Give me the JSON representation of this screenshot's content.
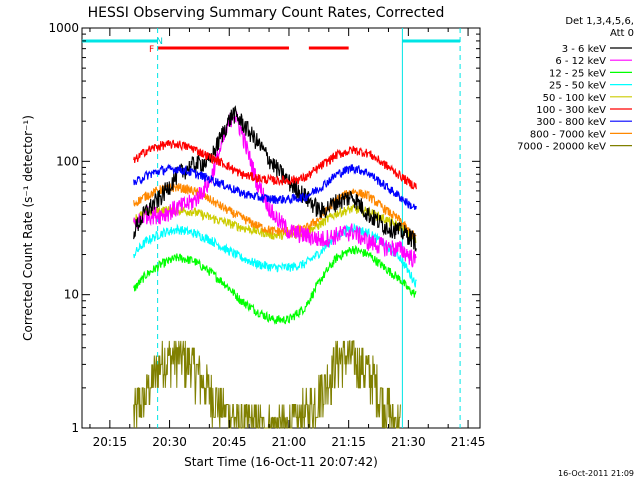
{
  "chart_data": {
    "type": "line",
    "title": "HESSI Observing Summary Count Rates, Corrected",
    "xlabel": "Start Time (16-Oct-11 20:07:42)",
    "ylabel": "Corrected Count Rate (s⁻¹ detector⁻¹)",
    "x_unit": "minutes of day (UT)",
    "xlim": [
      1208,
      1308
    ],
    "ylim": [
      1,
      1000
    ],
    "y_scale": "log",
    "grid": false,
    "x_ticks": [
      {
        "value": 1215,
        "label": "20:15"
      },
      {
        "value": 1230,
        "label": "20:30"
      },
      {
        "value": 1245,
        "label": "20:45"
      },
      {
        "value": 1260,
        "label": "21:00"
      },
      {
        "value": 1275,
        "label": "21:15"
      },
      {
        "value": 1290,
        "label": "21:30"
      },
      {
        "value": 1305,
        "label": "21:45"
      }
    ],
    "y_ticks": [
      {
        "value": 1,
        "label": "1"
      },
      {
        "value": 10,
        "label": "10"
      },
      {
        "value": 100,
        "label": "100"
      },
      {
        "value": 1000,
        "label": "1000"
      }
    ],
    "legend": {
      "position": "outside-right",
      "header": [
        "Det 1,3,4,5,6,",
        "Att 0"
      ]
    },
    "series": [
      {
        "name": "3 - 6 keV",
        "color": "#000000",
        "x": [
          1221,
          1224,
          1228,
          1232,
          1236,
          1240,
          1244,
          1246,
          1248,
          1252,
          1256,
          1260,
          1264,
          1268,
          1272,
          1276,
          1280,
          1284,
          1288,
          1290,
          1292
        ],
        "y": [
          30,
          42,
          55,
          80,
          95,
          100,
          180,
          230,
          200,
          140,
          95,
          70,
          55,
          42,
          50,
          55,
          40,
          33,
          30,
          28,
          25
        ]
      },
      {
        "name": "6 - 12 keV",
        "color": "#ff00ff",
        "x": [
          1221,
          1224,
          1228,
          1232,
          1236,
          1240,
          1244,
          1246,
          1248,
          1252,
          1256,
          1260,
          1264,
          1268,
          1272,
          1276,
          1280,
          1284,
          1288,
          1290,
          1292
        ],
        "y": [
          33,
          40,
          40,
          45,
          50,
          70,
          160,
          235,
          170,
          70,
          40,
          30,
          28,
          26,
          28,
          30,
          25,
          23,
          22,
          20,
          18
        ]
      },
      {
        "name": "12 - 25 keV",
        "color": "#00ff00",
        "x": [
          1221,
          1224,
          1228,
          1232,
          1236,
          1240,
          1244,
          1248,
          1252,
          1256,
          1260,
          1264,
          1268,
          1272,
          1276,
          1280,
          1284,
          1288,
          1290,
          1292
        ],
        "y": [
          11,
          14,
          17,
          19,
          18,
          15,
          12,
          9,
          7.5,
          6.5,
          6.5,
          8,
          13,
          19,
          22,
          20,
          16,
          13,
          11,
          10
        ]
      },
      {
        "name": "25 - 50 keV",
        "color": "#00ffff",
        "x": [
          1221,
          1224,
          1228,
          1232,
          1236,
          1240,
          1244,
          1248,
          1252,
          1256,
          1260,
          1264,
          1268,
          1272,
          1276,
          1280,
          1284,
          1288,
          1290,
          1292
        ],
        "y": [
          20,
          25,
          29,
          31,
          29,
          26,
          22,
          19,
          17,
          16,
          16,
          17,
          21,
          28,
          32,
          29,
          24,
          19,
          15,
          12
        ]
      },
      {
        "name": "50 - 100 keV",
        "color": "#cccc00",
        "x": [
          1221,
          1224,
          1228,
          1232,
          1236,
          1240,
          1244,
          1248,
          1252,
          1256,
          1260,
          1264,
          1268,
          1272,
          1276,
          1280,
          1284,
          1288,
          1290,
          1292
        ],
        "y": [
          37,
          41,
          43,
          43,
          42,
          38,
          35,
          32,
          30,
          28,
          28,
          29,
          34,
          41,
          44,
          42,
          37,
          32,
          28,
          25
        ]
      },
      {
        "name": "100 - 300 keV",
        "color": "#ff0000",
        "x": [
          1221,
          1224,
          1228,
          1232,
          1236,
          1240,
          1244,
          1248,
          1252,
          1256,
          1260,
          1264,
          1268,
          1272,
          1276,
          1280,
          1284,
          1288,
          1290,
          1292
        ],
        "y": [
          100,
          120,
          132,
          135,
          125,
          108,
          95,
          80,
          75,
          72,
          72,
          75,
          92,
          112,
          122,
          115,
          95,
          78,
          70,
          65
        ]
      },
      {
        "name": "300 - 800 keV",
        "color": "#0000ff",
        "x": [
          1221,
          1224,
          1228,
          1232,
          1236,
          1240,
          1244,
          1248,
          1252,
          1256,
          1260,
          1264,
          1268,
          1272,
          1276,
          1280,
          1284,
          1288,
          1290,
          1292
        ],
        "y": [
          68,
          78,
          86,
          88,
          82,
          74,
          66,
          58,
          54,
          52,
          52,
          54,
          64,
          80,
          90,
          82,
          66,
          54,
          48,
          44
        ]
      },
      {
        "name": "800 - 7000 keV",
        "color": "#ff8800",
        "x": [
          1221,
          1224,
          1228,
          1232,
          1236,
          1240,
          1244,
          1248,
          1252,
          1256,
          1260,
          1264,
          1268,
          1272,
          1276,
          1280,
          1284,
          1288,
          1290,
          1292
        ],
        "y": [
          48,
          55,
          62,
          64,
          60,
          52,
          44,
          38,
          33,
          30,
          30,
          31,
          38,
          52,
          60,
          55,
          44,
          36,
          30,
          27
        ]
      },
      {
        "name": "7000 - 20000 keV",
        "color": "#808000",
        "x": [
          1221,
          1224,
          1228,
          1232,
          1236,
          1240,
          1244,
          1248,
          1252,
          1256,
          1260,
          1264,
          1268,
          1270,
          1272,
          1276,
          1280,
          1284,
          1288
        ],
        "y": [
          1.2,
          1.7,
          3.1,
          3.3,
          2.8,
          1.8,
          1.3,
          1.1,
          1,
          1,
          1,
          1.2,
          1.8,
          2.3,
          3.2,
          3.3,
          2.6,
          1.5,
          1
        ]
      }
    ],
    "annotations": [
      {
        "type": "flag-label",
        "text": "F",
        "color": "#ff0000",
        "x": 1225.5
      },
      {
        "type": "flag-label",
        "text": "N",
        "color": "#00cccc",
        "x": 1227.5
      },
      {
        "type": "flag-bar",
        "flag": "flare",
        "color": "#ff0000",
        "segments": [
          [
            1227,
            1260
          ],
          [
            1265,
            1275
          ]
        ]
      },
      {
        "type": "flag-bar",
        "flag": "night",
        "color": "#00e5e5",
        "segments": [
          [
            1208,
            1227
          ],
          [
            1288.5,
            1303
          ]
        ]
      },
      {
        "type": "vline",
        "color": "#00e5e5",
        "style": "dashed",
        "x": 1227
      },
      {
        "type": "vline",
        "color": "#00e5e5",
        "style": "solid",
        "x": 1288.5
      },
      {
        "type": "vline",
        "color": "#00e5e5",
        "style": "dashed",
        "x": 1303
      }
    ]
  },
  "footer_timestamp": "16-Oct-2011 21:09"
}
